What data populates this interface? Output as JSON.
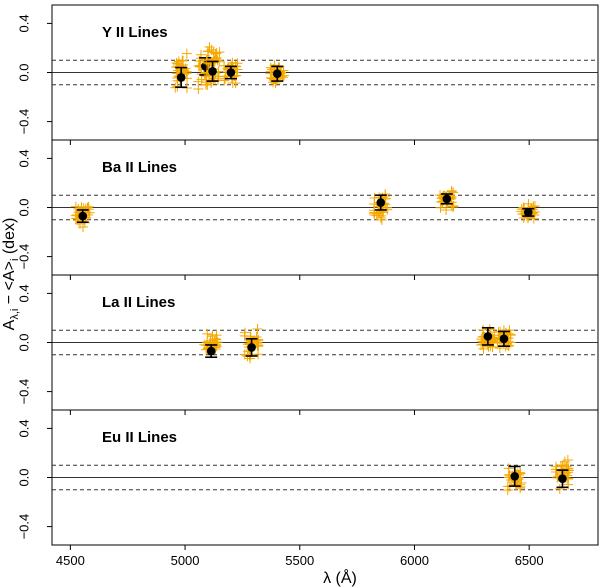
{
  "chart_data": {
    "type": "scatter",
    "xlabel": "λ (Å)",
    "ylabel": "A_{λ,i} − <A>_i (dex)",
    "ylabel_parts": {
      "main": "A",
      "sub_main": "λ,i",
      "mid": " − <A>",
      "sub_mid": "i",
      "tail": " (dex)"
    },
    "xlim": [
      4420,
      6800
    ],
    "x_ticks": [
      4500,
      5000,
      5500,
      6000,
      6500
    ],
    "x_tick_labels": [
      "4500",
      "5000",
      "5500",
      "6000",
      "6500"
    ],
    "ylim": [
      -0.55,
      0.55
    ],
    "y_ticks": [
      -0.4,
      0.0,
      0.4
    ],
    "y_tick_labels": [
      "−0.4",
      "0.0",
      "0.4"
    ],
    "reference_lines": {
      "solid": 0.0,
      "dashed": [
        0.1,
        -0.1
      ]
    },
    "colors": {
      "points": "#f5a800",
      "mean": "#000000",
      "errorbar": "#000000"
    },
    "panels": [
      {
        "title": "Y II Lines",
        "lines": [
          {
            "wavelength": 4983,
            "mean": -0.04,
            "err": 0.08,
            "spread": [
              -0.21,
              0.2
            ]
          },
          {
            "wavelength": 5088,
            "mean": 0.05,
            "err": 0.07,
            "spread": [
              -0.17,
              0.22
            ]
          },
          {
            "wavelength": 5120,
            "mean": 0.01,
            "err": 0.08,
            "spread": [
              -0.17,
              0.24
            ]
          },
          {
            "wavelength": 5200,
            "mean": 0.0,
            "err": 0.05,
            "spread": [
              -0.1,
              0.12
            ]
          },
          {
            "wavelength": 5402,
            "mean": -0.01,
            "err": 0.06,
            "spread": [
              -0.14,
              0.1
            ]
          }
        ]
      },
      {
        "title": "Ba II Lines",
        "lines": [
          {
            "wavelength": 4554,
            "mean": -0.07,
            "err": 0.05,
            "spread": [
              -0.18,
              0.06
            ]
          },
          {
            "wavelength": 5853,
            "mean": 0.04,
            "err": 0.06,
            "spread": [
              -0.12,
              0.15
            ]
          },
          {
            "wavelength": 6141,
            "mean": 0.07,
            "err": 0.04,
            "spread": [
              -0.04,
              0.18
            ]
          },
          {
            "wavelength": 6496,
            "mean": -0.04,
            "err": 0.03,
            "spread": [
              -0.12,
              0.05
            ]
          }
        ]
      },
      {
        "title": "La II Lines",
        "lines": [
          {
            "wavelength": 5114,
            "mean": -0.07,
            "err": 0.05,
            "spread": [
              -0.17,
              0.12
            ]
          },
          {
            "wavelength": 5290,
            "mean": -0.04,
            "err": 0.07,
            "spread": [
              -0.16,
              0.14
            ]
          },
          {
            "wavelength": 6320,
            "mean": 0.05,
            "err": 0.07,
            "spread": [
              -0.12,
              0.19
            ]
          },
          {
            "wavelength": 6390,
            "mean": 0.03,
            "err": 0.06,
            "spread": [
              -0.12,
              0.16
            ]
          }
        ]
      },
      {
        "title": "Eu II Lines",
        "lines": [
          {
            "wavelength": 6437,
            "mean": 0.01,
            "err": 0.08,
            "spread": [
              -0.18,
              0.14
            ]
          },
          {
            "wavelength": 6645,
            "mean": -0.01,
            "err": 0.07,
            "spread": [
              -0.12,
              0.2
            ]
          }
        ]
      }
    ]
  }
}
